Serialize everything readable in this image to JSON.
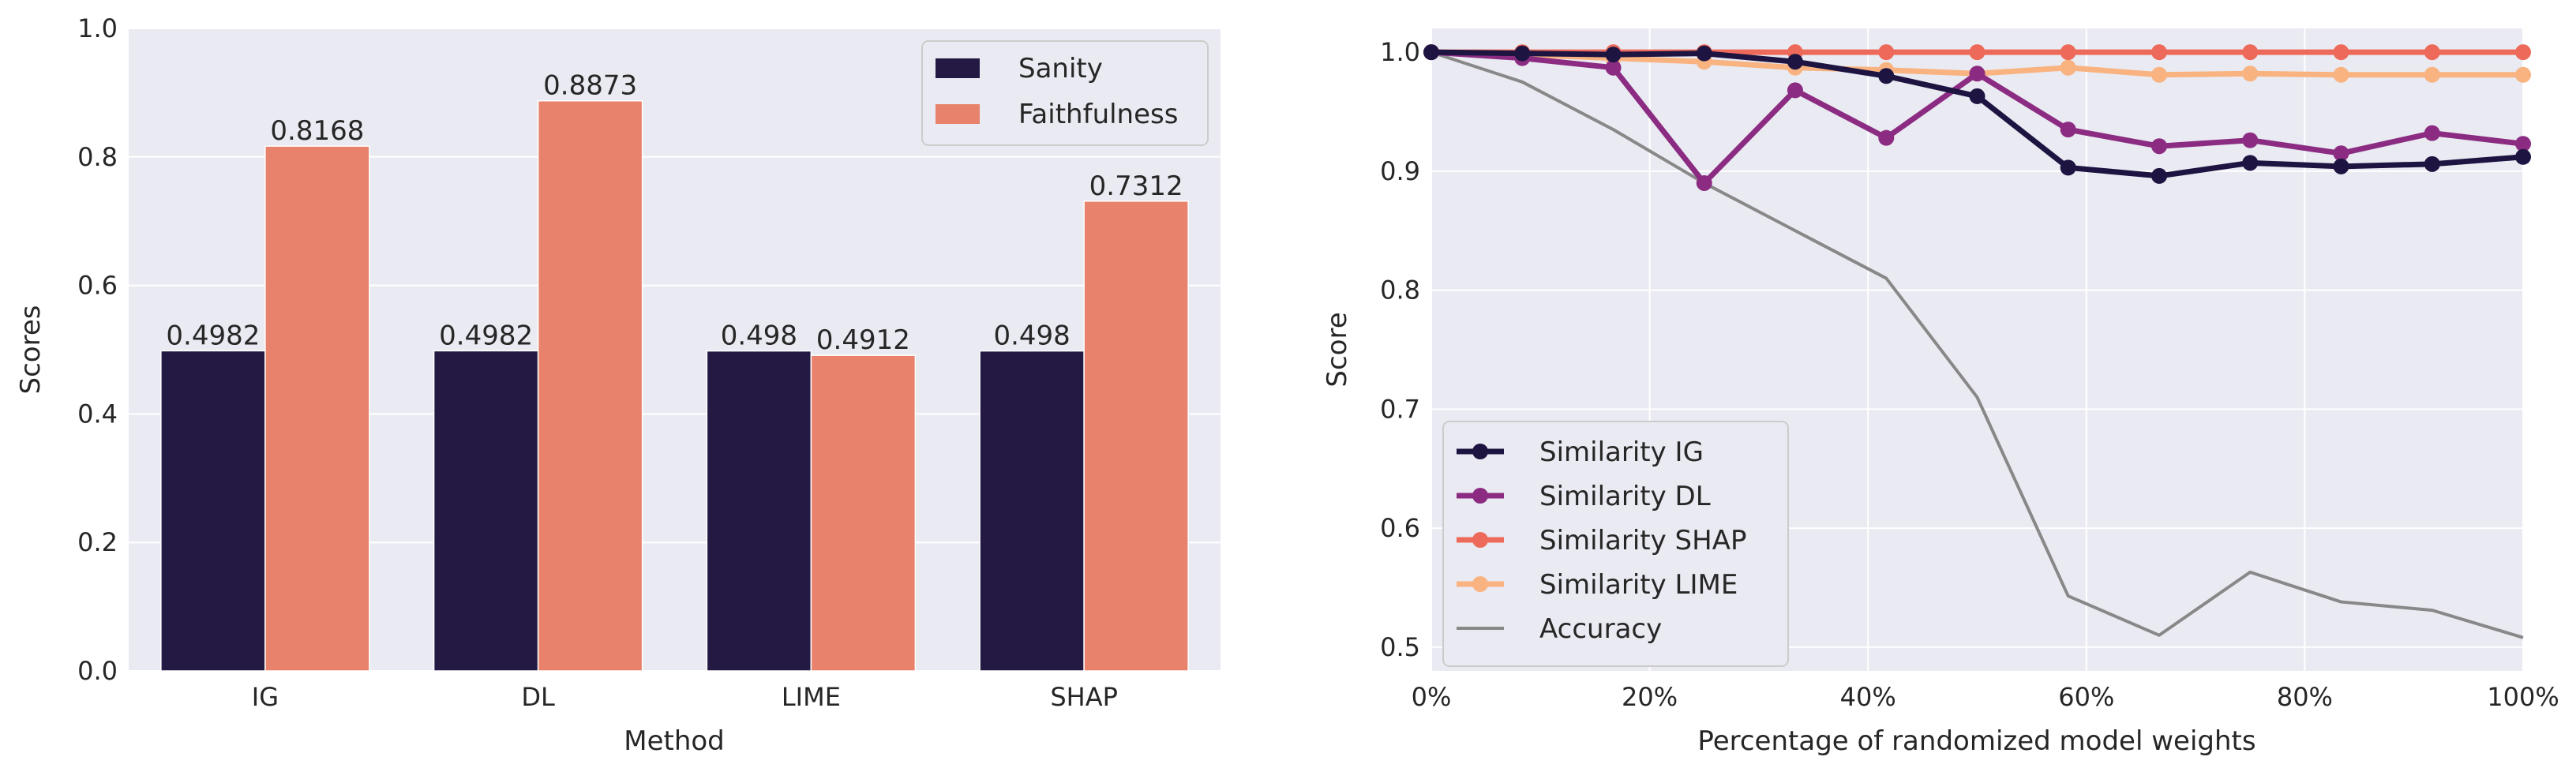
{
  "chart_data": [
    {
      "type": "bar",
      "title": "",
      "xlabel": "Method",
      "ylabel": "Scores",
      "ylim": [
        0,
        1.0
      ],
      "yticks": [
        "0.0",
        "0.2",
        "0.4",
        "0.6",
        "0.8",
        "1.0"
      ],
      "categories": [
        "IG",
        "DL",
        "LIME",
        "SHAP"
      ],
      "series": [
        {
          "name": "Sanity",
          "color": "#231942",
          "values": [
            0.4982,
            0.4982,
            0.498,
            0.498
          ],
          "labels": [
            "0.4982",
            "0.4982",
            "0.498",
            "0.498"
          ]
        },
        {
          "name": "Faithfulness",
          "color": "#E8826C",
          "values": [
            0.8168,
            0.8873,
            0.4912,
            0.7312
          ],
          "labels": [
            "0.8168",
            "0.8873",
            "0.4912",
            "0.7312"
          ]
        }
      ],
      "legend": "top-right",
      "grid": true
    },
    {
      "type": "line",
      "title": "",
      "xlabel": "Percentage of randomized model weights",
      "ylabel": "Score",
      "xlim": [
        0,
        100
      ],
      "ylim": [
        0.48,
        1.02
      ],
      "xticks": [
        "0%",
        "20%",
        "40%",
        "60%",
        "80%",
        "100%"
      ],
      "yticks": [
        "0.5",
        "0.6",
        "0.7",
        "0.8",
        "0.9",
        "1.0"
      ],
      "x": [
        0,
        8.33,
        16.67,
        25,
        33.33,
        41.67,
        50,
        58.33,
        66.67,
        75,
        83.33,
        91.67,
        100
      ],
      "series": [
        {
          "name": "Similarity IG",
          "color": "#1D1442",
          "marker": true,
          "values": [
            1.0,
            0.999,
            0.998,
            0.999,
            0.992,
            0.98,
            0.963,
            0.903,
            0.896,
            0.907,
            0.904,
            0.906,
            0.912
          ]
        },
        {
          "name": "Similarity DL",
          "color": "#8B2C82",
          "marker": true,
          "values": [
            1.0,
            0.995,
            0.987,
            0.89,
            0.968,
            0.928,
            0.982,
            0.935,
            0.921,
            0.926,
            0.915,
            0.932,
            0.923
          ]
        },
        {
          "name": "Similarity SHAP",
          "color": "#ED6A5A",
          "marker": true,
          "values": [
            1.0,
            1.0,
            1.0,
            1.0,
            1.0,
            1.0,
            1.0,
            1.0,
            1.0,
            1.0,
            1.0,
            1.0,
            1.0
          ]
        },
        {
          "name": "Similarity LIME",
          "color": "#F9B380",
          "marker": true,
          "values": [
            1.0,
            0.998,
            0.995,
            0.992,
            0.987,
            0.985,
            0.982,
            0.987,
            0.981,
            0.982,
            0.981,
            0.981,
            0.981
          ]
        },
        {
          "name": "Accuracy",
          "color": "#888888",
          "marker": false,
          "values": [
            1.0,
            0.975,
            0.935,
            0.89,
            0.85,
            0.81,
            0.71,
            0.543,
            0.51,
            0.563,
            0.538,
            0.531,
            0.508
          ]
        }
      ],
      "legend": "bottom-left",
      "grid": true
    }
  ]
}
